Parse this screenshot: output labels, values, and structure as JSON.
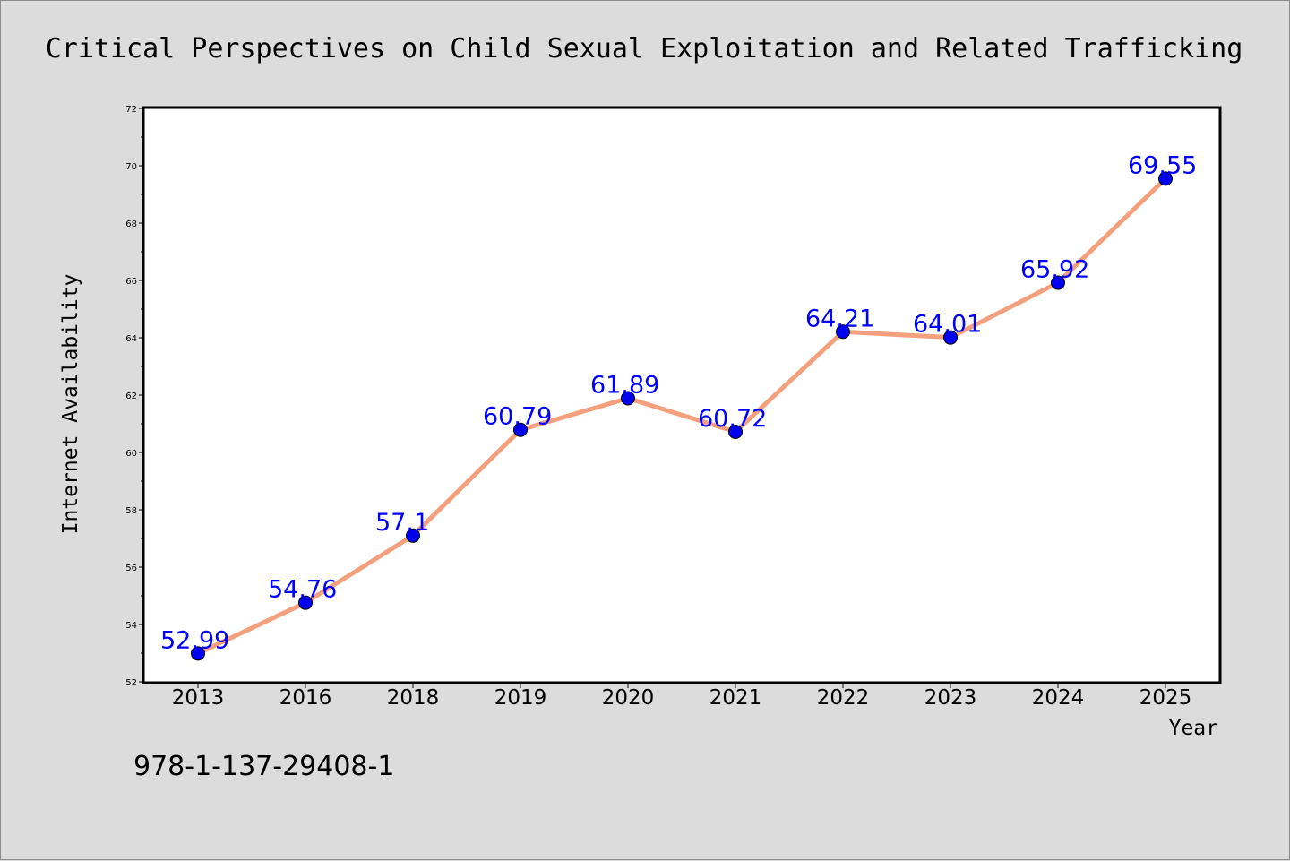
{
  "chart_data": {
    "type": "line",
    "title": "Critical Perspectives on Child Sexual Exploitation and Related Trafficking",
    "xlabel": "Year",
    "ylabel": "Internet Availability",
    "categories": [
      "2013",
      "2016",
      "2018",
      "2019",
      "2020",
      "2021",
      "2022",
      "2023",
      "2024",
      "2025"
    ],
    "values": [
      52.99,
      54.76,
      57.1,
      60.79,
      61.89,
      60.72,
      64.21,
      64.01,
      65.92,
      69.55
    ],
    "data_labels": [
      "52.99",
      "54.76",
      "57.1",
      "60.79",
      "61.89",
      "60.72",
      "64.21",
      "64.01",
      "65.92",
      "69.55"
    ],
    "ylim": [
      52,
      72
    ],
    "yticks": [
      52,
      54,
      56,
      58,
      60,
      62,
      64,
      66,
      68,
      70,
      72
    ],
    "grid": false,
    "legend": "none",
    "colors": {
      "line": "#f4a07c",
      "marker": "#0000ee",
      "label": "#0000ff",
      "background": "#dcdcdc",
      "plot_background": "#ffffff"
    }
  },
  "footer": {
    "code": "978-1-137-29408-1"
  }
}
